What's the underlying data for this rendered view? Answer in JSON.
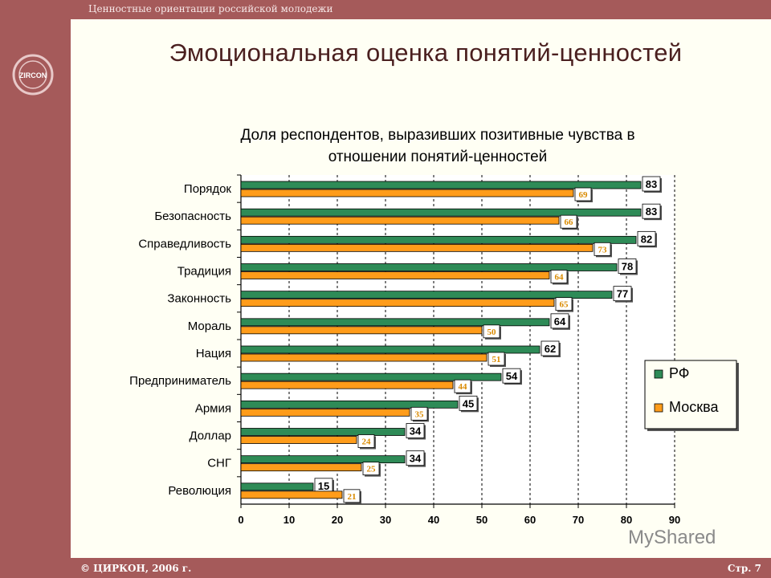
{
  "header": {
    "text": "Ценностные ориентации российской молодежи"
  },
  "logo": {
    "text": "ZIRCON",
    "icon": "zircon-logo-icon"
  },
  "slide_title": "Эмоциональная оценка понятий-ценностей",
  "footer": {
    "left": "© ЦИРКОН, 2006 г.",
    "right": "Стр. 7"
  },
  "watermark": "MyShared",
  "colors": {
    "band": "#a55a5a",
    "rf": "#2e8b57",
    "moscow": "#ff9c1a",
    "background": "#fffff4"
  },
  "chart_data": {
    "type": "bar",
    "orientation": "horizontal",
    "title_lines": [
      "Доля респондентов, выразивших позитивные чувства в",
      "отношении понятий-ценностей"
    ],
    "categories": [
      "Порядок",
      "Безопасность",
      "Справедливость",
      "Традиция",
      "Законность",
      "Мораль",
      "Нация",
      "Предприниматель",
      "Армия",
      "Доллар",
      "СНГ",
      "Революция"
    ],
    "series": [
      {
        "name": "РФ",
        "values": [
          83,
          83,
          82,
          78,
          77,
          64,
          62,
          54,
          45,
          34,
          34,
          15
        ]
      },
      {
        "name": "Москва",
        "values": [
          69,
          66,
          73,
          64,
          65,
          50,
          51,
          44,
          35,
          24,
          25,
          21
        ]
      }
    ],
    "xlim": [
      0,
      90
    ],
    "xticks": [
      0,
      10,
      20,
      30,
      40,
      50,
      60,
      70,
      80,
      90
    ],
    "grid": "vertical",
    "legend_position": "right"
  }
}
